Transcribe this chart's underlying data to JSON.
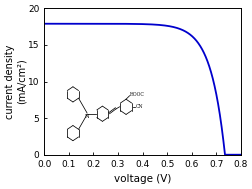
{
  "title": "",
  "xlabel": "voltage (V)",
  "ylabel": "current density\n(mA/cm²)",
  "xlim": [
    0.0,
    0.8
  ],
  "ylim": [
    0.0,
    20.0
  ],
  "xticks": [
    0.0,
    0.1,
    0.2,
    0.3,
    0.4,
    0.5,
    0.6,
    0.7,
    0.8
  ],
  "yticks": [
    0,
    5,
    10,
    15,
    20
  ],
  "line_color": "#0000cc",
  "line_width": 1.3,
  "Jsc": 17.9,
  "Voc": 0.735,
  "background_color": "#ffffff",
  "xlabel_fontsize": 7.5,
  "ylabel_fontsize": 7.0,
  "tick_fontsize": 6.5
}
